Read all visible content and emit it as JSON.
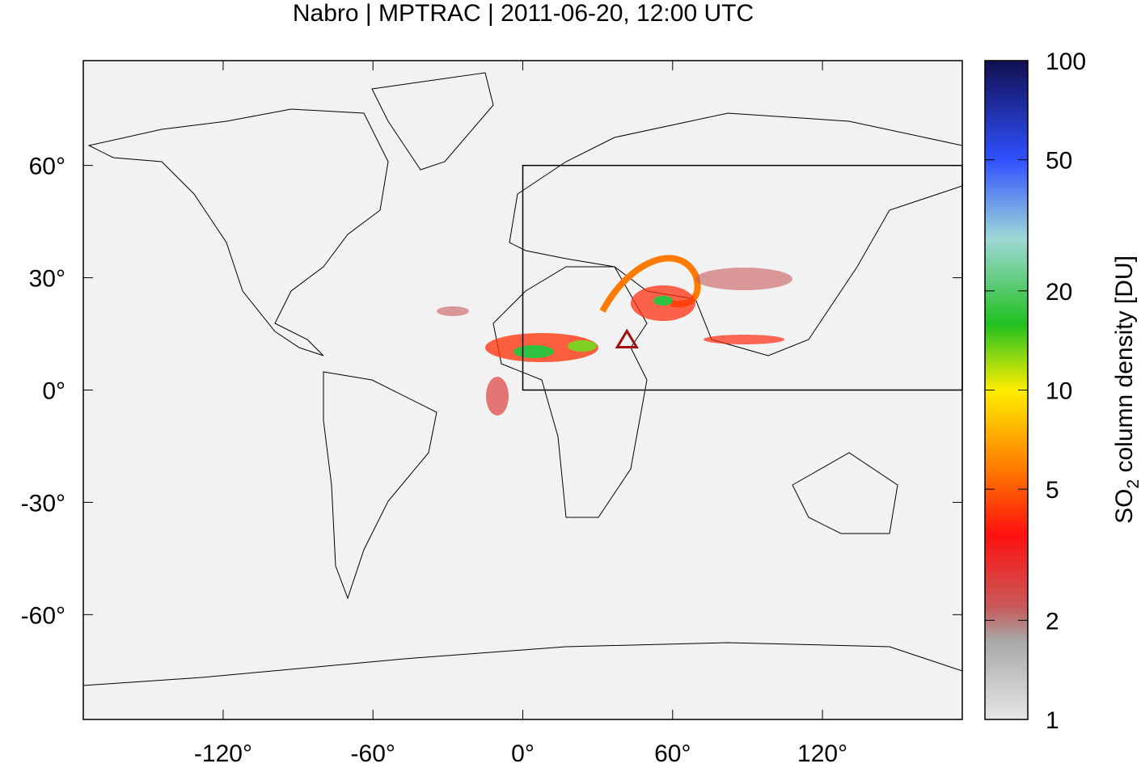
{
  "chart_data": {
    "type": "map",
    "title": "Nabro | MPTRAC | 2011-06-20, 12:00 UTC",
    "xlim": [
      -176,
      176
    ],
    "ylim": [
      -88,
      88
    ],
    "xticks": [
      {
        "value": -120,
        "label": "-120°"
      },
      {
        "value": -60,
        "label": "-60°"
      },
      {
        "value": 0,
        "label": "0°"
      },
      {
        "value": 60,
        "label": "60°"
      },
      {
        "value": 120,
        "label": "120°"
      }
    ],
    "yticks": [
      {
        "value": 60,
        "label": "60°"
      },
      {
        "value": 30,
        "label": "30°"
      },
      {
        "value": 0,
        "label": "0°"
      },
      {
        "value": -30,
        "label": "-30°"
      },
      {
        "value": -60,
        "label": "-60°"
      }
    ],
    "region": {
      "xlim": [
        0,
        180
      ],
      "ylim": [
        0,
        60
      ]
    },
    "markers": [
      {
        "x": 41.7,
        "y": 13.4,
        "color": "#a01010"
      }
    ],
    "colorbar": {
      "label_parts": [
        "SO",
        "2",
        " column density [DU]"
      ],
      "log_scale": true,
      "lim": [
        1,
        100
      ],
      "ticks": [
        1,
        2,
        5,
        10,
        20,
        50,
        100
      ]
    }
  }
}
